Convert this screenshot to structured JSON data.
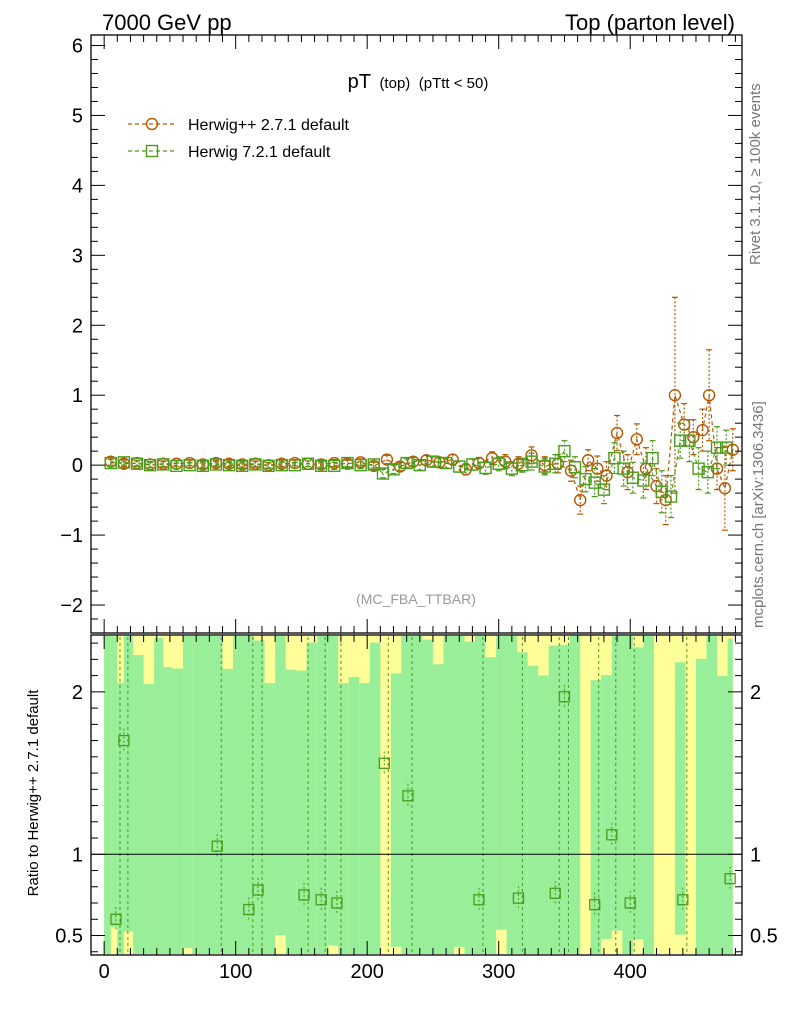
{
  "header": {
    "left": "7000 GeV pp",
    "right": "Top (parton level)"
  },
  "side_labels": {
    "rivet": "Rivet 3.1.10, ≥ 100k events",
    "mcplots": "mcplots.cern.ch [arXiv:1306.3436]"
  },
  "colors": {
    "herwig_pp": "#b35900",
    "herwig_7": "#4a9c1a",
    "band_green": "#99ee99",
    "band_yellow": "#ffff99",
    "axis": "#000000",
    "watermark": "#999999"
  },
  "chart_data": {
    "type": "scatter",
    "title": "pT",
    "title_sub": "(top)",
    "title_cut": "(pTtt < 50)",
    "analysis_tag": "(MC_FBA_TTBAR)",
    "xlim": [
      -10,
      485
    ],
    "x_ticks": [
      0,
      100,
      200,
      300,
      400
    ],
    "main": {
      "ylim": [
        -2.4,
        6.15
      ],
      "y_ticks": [
        -2,
        -1,
        0,
        1,
        2,
        3,
        4,
        5,
        6
      ],
      "series": [
        {
          "name": "Herwig++ 2.7.1 default",
          "marker": "circle",
          "points": [
            [
              5,
              0.05,
              0.05
            ],
            [
              15,
              0.02,
              0.04
            ],
            [
              25,
              0.03,
              0.04
            ],
            [
              35,
              0.01,
              0.04
            ],
            [
              45,
              0.02,
              0.04
            ],
            [
              55,
              0.02,
              0.04
            ],
            [
              65,
              0.03,
              0.04
            ],
            [
              75,
              0.01,
              0.04
            ],
            [
              85,
              0.03,
              0.04
            ],
            [
              95,
              0.02,
              0.04
            ],
            [
              105,
              0.01,
              0.04
            ],
            [
              115,
              0.02,
              0.04
            ],
            [
              125,
              0.0,
              0.04
            ],
            [
              135,
              0.02,
              0.04
            ],
            [
              145,
              0.03,
              0.04
            ],
            [
              155,
              0.02,
              0.04
            ],
            [
              165,
              0.01,
              0.04
            ],
            [
              175,
              0.03,
              0.05
            ],
            [
              185,
              0.02,
              0.05
            ],
            [
              195,
              0.04,
              0.05
            ],
            [
              205,
              -0.01,
              0.05
            ],
            [
              215,
              0.08,
              0.06
            ],
            [
              225,
              -0.02,
              0.06
            ],
            [
              235,
              0.05,
              0.06
            ],
            [
              245,
              0.07,
              0.07
            ],
            [
              255,
              0.04,
              0.07
            ],
            [
              265,
              0.08,
              0.07
            ],
            [
              275,
              -0.06,
              0.08
            ],
            [
              285,
              0.03,
              0.08
            ],
            [
              295,
              0.1,
              0.09
            ],
            [
              305,
              0.05,
              0.1
            ],
            [
              315,
              0.02,
              0.1
            ],
            [
              325,
              0.14,
              0.12
            ],
            [
              335,
              0.0,
              0.12
            ],
            [
              345,
              0.02,
              0.13
            ],
            [
              355,
              -0.08,
              0.15
            ],
            [
              362,
              -0.5,
              0.2
            ],
            [
              368,
              0.07,
              0.15
            ],
            [
              375,
              -0.05,
              0.18
            ],
            [
              382,
              -0.15,
              0.2
            ],
            [
              390,
              0.46,
              0.25
            ],
            [
              398,
              -0.1,
              0.25
            ],
            [
              405,
              0.37,
              0.22
            ],
            [
              412,
              -0.05,
              0.3
            ],
            [
              420,
              -0.3,
              0.25
            ],
            [
              427,
              -0.5,
              0.35
            ],
            [
              434,
              1.0,
              1.4
            ],
            [
              441,
              0.58,
              0.3
            ],
            [
              448,
              0.4,
              0.25
            ],
            [
              455,
              0.5,
              0.3
            ],
            [
              460,
              1.0,
              0.65
            ],
            [
              466,
              -0.05,
              0.3
            ],
            [
              472,
              -0.33,
              0.6
            ],
            [
              478,
              0.22,
              0.3
            ]
          ]
        },
        {
          "name": "Herwig 7.2.1 default",
          "marker": "square",
          "points": [
            [
              5,
              0.03,
              0.05
            ],
            [
              15,
              0.04,
              0.04
            ],
            [
              25,
              0.02,
              0.04
            ],
            [
              35,
              0.0,
              0.04
            ],
            [
              45,
              0.01,
              0.04
            ],
            [
              55,
              -0.01,
              0.04
            ],
            [
              65,
              0.0,
              0.04
            ],
            [
              75,
              -0.01,
              0.04
            ],
            [
              85,
              0.01,
              0.04
            ],
            [
              95,
              0.0,
              0.04
            ],
            [
              105,
              -0.01,
              0.04
            ],
            [
              115,
              0.01,
              0.04
            ],
            [
              125,
              -0.01,
              0.04
            ],
            [
              135,
              0.0,
              0.04
            ],
            [
              145,
              0.0,
              0.04
            ],
            [
              155,
              0.02,
              0.04
            ],
            [
              165,
              -0.01,
              0.04
            ],
            [
              175,
              -0.01,
              0.05
            ],
            [
              185,
              0.03,
              0.05
            ],
            [
              195,
              0.0,
              0.05
            ],
            [
              205,
              0.01,
              0.05
            ],
            [
              212,
              -0.12,
              0.06
            ],
            [
              220,
              -0.06,
              0.06
            ],
            [
              230,
              0.03,
              0.06
            ],
            [
              240,
              0.0,
              0.07
            ],
            [
              250,
              0.05,
              0.07
            ],
            [
              260,
              0.03,
              0.07
            ],
            [
              270,
              -0.02,
              0.08
            ],
            [
              280,
              0.01,
              0.08
            ],
            [
              290,
              -0.04,
              0.09
            ],
            [
              300,
              0.02,
              0.1
            ],
            [
              310,
              -0.05,
              0.1
            ],
            [
              318,
              0.0,
              0.1
            ],
            [
              325,
              0.05,
              0.12
            ],
            [
              335,
              -0.02,
              0.12
            ],
            [
              343,
              0.02,
              0.13
            ],
            [
              350,
              0.2,
              0.15
            ],
            [
              358,
              -0.03,
              0.15
            ],
            [
              366,
              -0.2,
              0.18
            ],
            [
              373,
              -0.25,
              0.2
            ],
            [
              380,
              -0.35,
              0.2
            ],
            [
              388,
              0.1,
              0.22
            ],
            [
              395,
              -0.05,
              0.25
            ],
            [
              402,
              -0.18,
              0.22
            ],
            [
              410,
              -0.22,
              0.25
            ],
            [
              417,
              0.1,
              0.25
            ],
            [
              424,
              -0.38,
              0.3
            ],
            [
              431,
              -0.45,
              0.3
            ],
            [
              438,
              0.35,
              0.25
            ],
            [
              445,
              0.35,
              0.3
            ],
            [
              452,
              -0.05,
              0.3
            ],
            [
              459,
              -0.1,
              0.3
            ],
            [
              466,
              0.25,
              0.3
            ],
            [
              473,
              0.25,
              0.25
            ]
          ]
        }
      ]
    },
    "ratio": {
      "ylabel": "Ratio to Herwig++ 2.7.1 default",
      "ylim": [
        0.38,
        2.35
      ],
      "y_ticks": [
        0.5,
        1,
        2
      ],
      "reference_line": 1.0,
      "series": [
        {
          "name": "Herwig 7.2.1 default",
          "points": [
            [
              9,
              0.6
            ],
            [
              15,
              1.7
            ],
            [
              86,
              1.05
            ],
            [
              110,
              0.66
            ],
            [
              117,
              0.78
            ],
            [
              152,
              0.75
            ],
            [
              165,
              0.72
            ],
            [
              177,
              0.7
            ],
            [
              213,
              1.56
            ],
            [
              231,
              1.36
            ],
            [
              285,
              0.72
            ],
            [
              315,
              0.73
            ],
            [
              343,
              0.76
            ],
            [
              350,
              1.97
            ],
            [
              373,
              0.69
            ],
            [
              386,
              1.12
            ],
            [
              400,
              0.7
            ],
            [
              440,
              0.72
            ],
            [
              476,
              0.85
            ]
          ]
        }
      ]
    }
  }
}
